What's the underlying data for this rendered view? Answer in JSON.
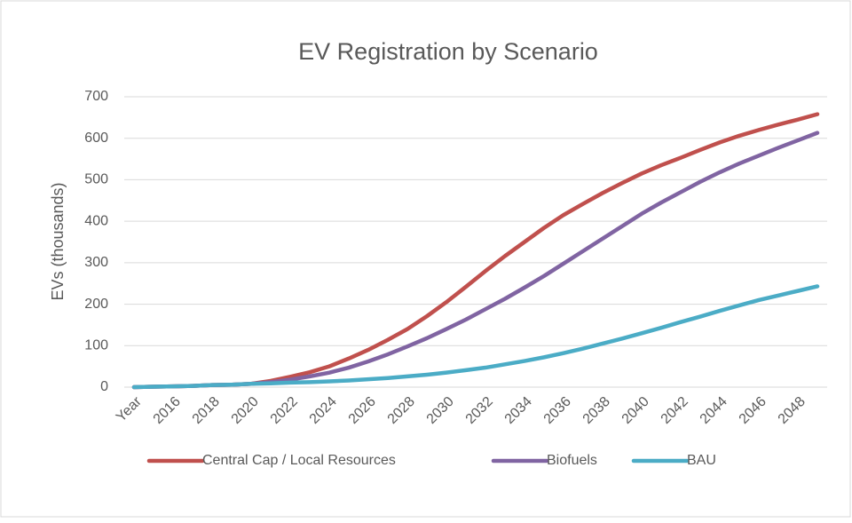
{
  "chart_data": {
    "type": "line",
    "title": "EV Registration by Scenario",
    "y_label": "EVs (thousands)",
    "categories": [
      "Year",
      null,
      "2016",
      null,
      "2018",
      null,
      "2020",
      null,
      "2022",
      null,
      "2024",
      null,
      "2026",
      null,
      "2028",
      null,
      "2030",
      null,
      "2032",
      null,
      "2034",
      null,
      "2036",
      null,
      "2038",
      null,
      "2040",
      null,
      "2042",
      null,
      "2044",
      null,
      "2046",
      null,
      "2048",
      null
    ],
    "series": [
      {
        "name": "Central Cap / Local Resources",
        "color": "#c0504d",
        "values": [
          0,
          1,
          2,
          3,
          5,
          6,
          8,
          15,
          25,
          36,
          50,
          69,
          90,
          114,
          140,
          171,
          205,
          242,
          280,
          316,
          350,
          384,
          415,
          442,
          468,
          492,
          515,
          535,
          553,
          572,
          590,
          606,
          620,
          633,
          645,
          658
        ]
      },
      {
        "name": "Biofuels",
        "color": "#8064a2",
        "values": [
          0,
          1,
          2,
          3,
          5,
          6,
          8,
          12,
          18,
          26,
          35,
          47,
          62,
          79,
          98,
          118,
          140,
          163,
          188,
          213,
          240,
          268,
          298,
          328,
          358,
          388,
          418,
          445,
          470,
          495,
          518,
          539,
          558,
          577,
          595,
          613
        ]
      },
      {
        "name": "BAU",
        "color": "#4bacc6",
        "values": [
          0,
          1,
          2,
          3,
          5,
          6,
          8,
          9,
          11,
          12,
          14,
          16,
          19,
          22,
          26,
          30,
          35,
          41,
          47,
          55,
          63,
          72,
          82,
          93,
          105,
          117,
          130,
          143,
          157,
          170,
          184,
          197,
          210,
          221,
          232,
          243
        ]
      }
    ],
    "ylim": [
      0,
      700
    ],
    "yticks": [
      0,
      100,
      200,
      300,
      400,
      500,
      600,
      700
    ],
    "grid": true,
    "legend": "bottom"
  }
}
